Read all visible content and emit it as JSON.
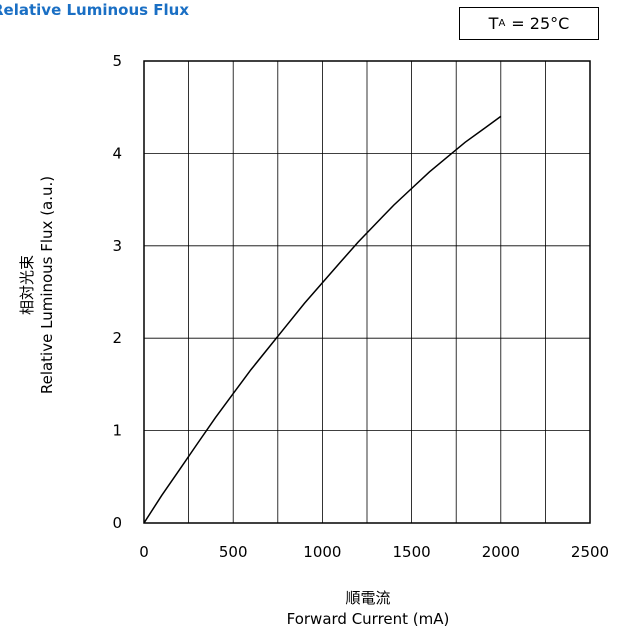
{
  "chart_data": {
    "type": "line",
    "title": "Relative Luminous Flux",
    "condition": {
      "symbol": "T",
      "subscript": "A",
      "value": "= 25°C"
    },
    "ylabel_jp": "相対光束",
    "ylabel": "Relative Luminous Flux (a.u.)",
    "xlabel_jp": "順電流",
    "xlabel": "Forward Current (mA)",
    "xlim": [
      0,
      2500
    ],
    "ylim": [
      0,
      5
    ],
    "xticks": [
      "0",
      "500",
      "1000",
      "1500",
      "2000",
      "2500"
    ],
    "yticks": [
      "0",
      "1",
      "2",
      "3",
      "4",
      "5"
    ],
    "grid": true,
    "series": [
      {
        "x": [
          0,
          100,
          200,
          300,
          400,
          500,
          600,
          700,
          800,
          900,
          1000,
          1100,
          1200,
          1300,
          1400,
          1500,
          1600,
          1700,
          1800,
          1900,
          2000
        ],
        "y": [
          0,
          0.3,
          0.58,
          0.86,
          1.14,
          1.4,
          1.66,
          1.9,
          2.14,
          2.38,
          2.6,
          2.82,
          3.04,
          3.24,
          3.44,
          3.62,
          3.8,
          3.96,
          4.12,
          4.26,
          4.4
        ]
      }
    ]
  }
}
